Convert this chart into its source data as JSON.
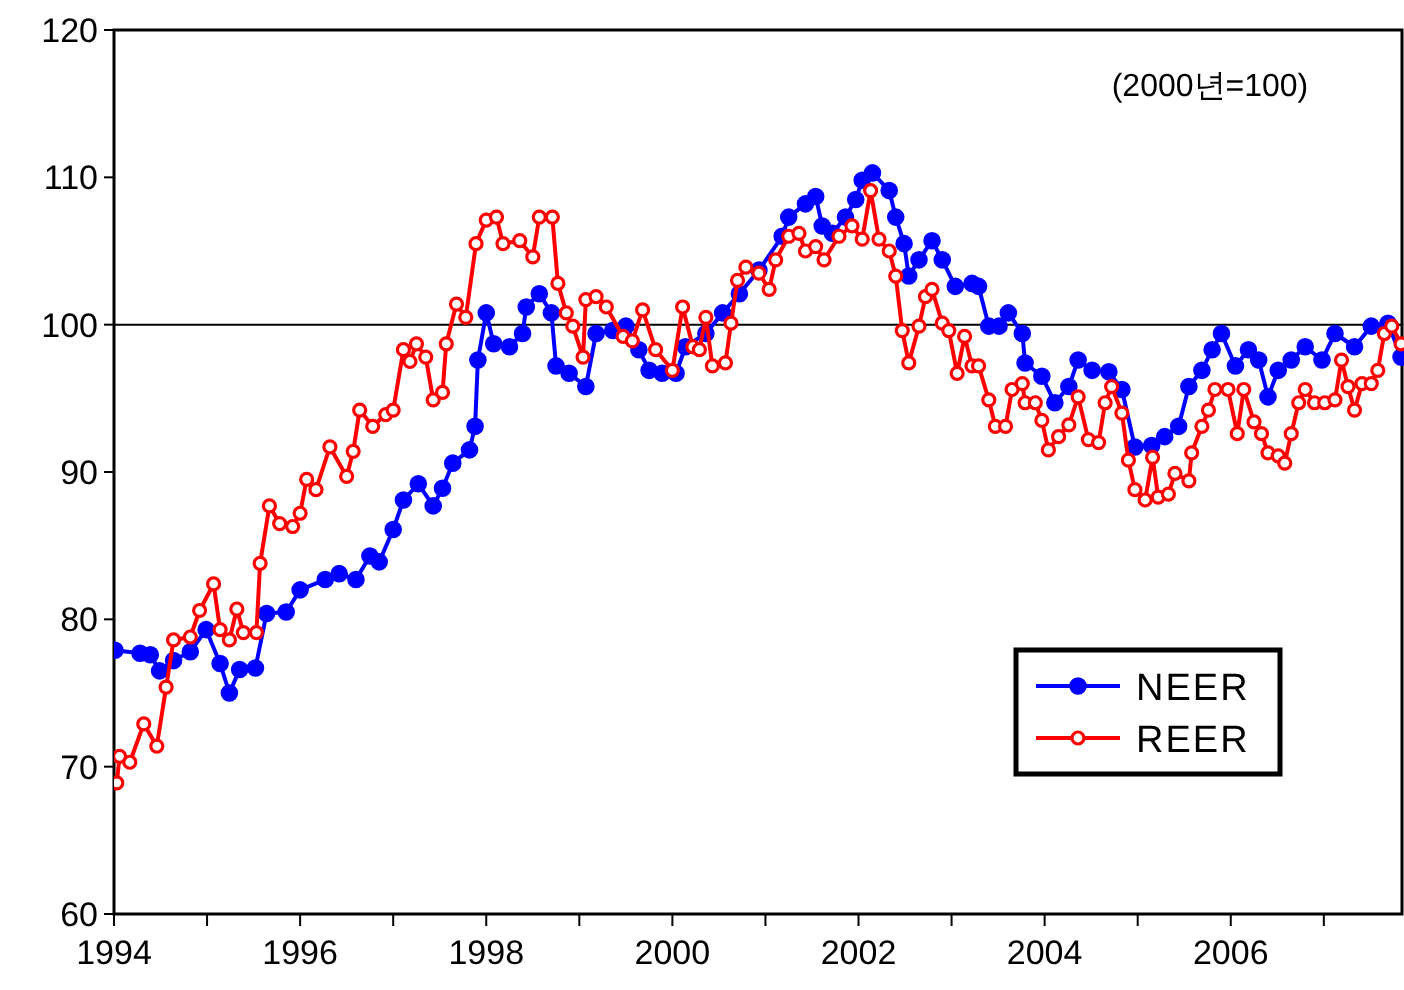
{
  "chart_data": {
    "type": "line",
    "annotations": [
      "(2000년=100)"
    ],
    "xlim": [
      1994,
      2007.84
    ],
    "xticks": [
      1994,
      {
        "value": 1995,
        "label": null
      },
      1996,
      {
        "value": 1997,
        "label": null
      },
      1998,
      {
        "value": 1999,
        "label": null
      },
      2000,
      {
        "value": 2001,
        "label": null
      },
      2002,
      {
        "value": 2003,
        "label": null
      },
      2004,
      {
        "value": 2005,
        "label": null
      },
      2006,
      {
        "value": 2007,
        "label": null
      }
    ],
    "ylim": [
      60,
      120
    ],
    "yticks": [
      60,
      70,
      80,
      90,
      100,
      110,
      120
    ],
    "grid": false,
    "legend": "bottom right",
    "marker": "circle",
    "line_style": "solid",
    "ref_lines": [
      {
        "axis": "y",
        "value": 100,
        "color": "#000000"
      }
    ],
    "series": [
      {
        "name": "NEER",
        "color": "#0000ff",
        "x": [
          1994.01,
          1994.28,
          1994.39,
          1994.49,
          1994.64,
          1994.82,
          1994.99,
          1995.14,
          1995.24,
          1995.35,
          1995.52,
          1995.64,
          1995.85,
          1996.0,
          1996.27,
          1996.42,
          1996.6,
          1996.75,
          1996.85,
          1997.0,
          1997.11,
          1997.27,
          1997.43,
          1997.53,
          1997.64,
          1997.82,
          1997.88,
          1997.91,
          1998.0,
          1998.08,
          1998.25,
          1998.39,
          1998.43,
          1998.57,
          1998.7,
          1998.75,
          1998.89,
          1999.07,
          1999.18,
          1999.36,
          1999.5,
          1999.64,
          1999.75,
          1999.89,
          2000.04,
          2000.14,
          2000.36,
          2000.54,
          2000.72,
          2000.93,
          2001.18,
          2001.25,
          2001.43,
          2001.54,
          2001.61,
          2001.72,
          2001.86,
          2001.97,
          2002.04,
          2002.15,
          2002.33,
          2002.4,
          2002.49,
          2002.54,
          2002.65,
          2002.79,
          2002.9,
          2003.04,
          2003.22,
          2003.29,
          2003.4,
          2003.51,
          2003.61,
          2003.76,
          2003.79,
          2003.97,
          2004.11,
          2004.26,
          2004.36,
          2004.51,
          2004.69,
          2004.83,
          2004.97,
          2005.15,
          2005.29,
          2005.44,
          2005.55,
          2005.69,
          2005.8,
          2005.9,
          2006.05,
          2006.19,
          2006.3,
          2006.4,
          2006.51,
          2006.65,
          2006.8,
          2006.98,
          2007.12,
          2007.33,
          2007.51,
          2007.69,
          2007.83
        ],
        "values": [
          77.9,
          77.7,
          77.6,
          76.5,
          77.2,
          77.8,
          79.3,
          77.0,
          75.0,
          76.6,
          76.7,
          80.4,
          80.5,
          82.0,
          82.7,
          83.1,
          82.7,
          84.3,
          83.9,
          86.1,
          88.1,
          89.2,
          87.7,
          88.9,
          90.6,
          91.5,
          93.1,
          97.6,
          100.8,
          98.7,
          98.5,
          99.4,
          101.2,
          102.1,
          100.8,
          97.2,
          96.7,
          95.8,
          99.4,
          99.6,
          99.9,
          98.3,
          96.9,
          96.7,
          96.7,
          98.5,
          99.4,
          100.8,
          102.1,
          103.7,
          106.0,
          107.3,
          108.2,
          108.7,
          106.7,
          106.2,
          107.3,
          108.5,
          109.8,
          110.3,
          109.1,
          107.3,
          105.5,
          103.3,
          104.4,
          105.7,
          104.4,
          102.6,
          102.8,
          102.6,
          99.9,
          99.9,
          100.8,
          99.4,
          97.4,
          96.5,
          94.7,
          95.8,
          97.6,
          96.9,
          96.8,
          95.6,
          91.7,
          91.8,
          92.4,
          93.1,
          95.8,
          96.9,
          98.3,
          99.4,
          97.2,
          98.3,
          97.6,
          95.1,
          96.9,
          97.6,
          98.5,
          97.6,
          99.4,
          98.5,
          99.9,
          100.1,
          97.8
        ]
      },
      {
        "name": "REER",
        "color": "#ff0000",
        "x": [
          1994.03,
          1994.06,
          1994.17,
          1994.32,
          1994.46,
          1994.56,
          1994.64,
          1994.82,
          1994.92,
          1995.07,
          1995.14,
          1995.24,
          1995.32,
          1995.39,
          1995.53,
          1995.57,
          1995.67,
          1995.78,
          1995.92,
          1996.0,
          1996.07,
          1996.17,
          1996.32,
          1996.5,
          1996.57,
          1996.64,
          1996.78,
          1996.92,
          1997.0,
          1997.11,
          1997.18,
          1997.25,
          1997.35,
          1997.43,
          1997.53,
          1997.57,
          1997.68,
          1997.78,
          1997.89,
          1998.0,
          1998.11,
          1998.18,
          1998.36,
          1998.5,
          1998.57,
          1998.71,
          1998.77,
          1998.86,
          1998.93,
          1999.04,
          1999.07,
          1999.18,
          1999.29,
          1999.47,
          1999.57,
          1999.68,
          1999.82,
          2000.0,
          2000.11,
          2000.22,
          2000.29,
          2000.36,
          2000.43,
          2000.57,
          2000.63,
          2000.7,
          2000.79,
          2000.93,
          2001.04,
          2001.11,
          2001.25,
          2001.36,
          2001.43,
          2001.54,
          2001.63,
          2001.79,
          2001.93,
          2002.04,
          2002.13,
          2002.22,
          2002.33,
          2002.4,
          2002.47,
          2002.54,
          2002.65,
          2002.72,
          2002.79,
          2002.9,
          2002.97,
          2003.06,
          2003.14,
          2003.22,
          2003.29,
          2003.4,
          2003.47,
          2003.58,
          2003.65,
          2003.76,
          2003.79,
          2003.9,
          2003.97,
          2004.04,
          2004.15,
          2004.26,
          2004.36,
          2004.47,
          2004.58,
          2004.65,
          2004.72,
          2004.83,
          2004.9,
          2004.97,
          2005.08,
          2005.16,
          2005.22,
          2005.33,
          2005.4,
          2005.55,
          2005.58,
          2005.69,
          2005.76,
          2005.83,
          2005.97,
          2006.07,
          2006.14,
          2006.25,
          2006.33,
          2006.4,
          2006.51,
          2006.58,
          2006.65,
          2006.73,
          2006.8,
          2006.9,
          2007.01,
          2007.12,
          2007.19,
          2007.26,
          2007.33,
          2007.41,
          2007.51,
          2007.58,
          2007.65,
          2007.73,
          2007.83
        ],
        "values": [
          68.9,
          70.7,
          70.3,
          72.9,
          71.4,
          75.4,
          78.6,
          78.8,
          80.6,
          82.4,
          79.3,
          78.6,
          80.7,
          79.1,
          79.1,
          83.8,
          87.7,
          86.5,
          86.3,
          87.2,
          89.5,
          88.8,
          91.7,
          89.7,
          91.4,
          94.2,
          93.1,
          93.9,
          94.2,
          98.3,
          97.5,
          98.7,
          97.8,
          94.9,
          95.4,
          98.7,
          101.4,
          100.5,
          105.5,
          107.1,
          107.3,
          105.5,
          105.7,
          104.6,
          107.3,
          107.3,
          102.8,
          100.8,
          99.9,
          97.8,
          101.7,
          101.9,
          101.2,
          99.2,
          98.9,
          101.0,
          98.3,
          96.9,
          101.2,
          98.5,
          98.3,
          100.5,
          97.2,
          97.4,
          100.1,
          103.0,
          103.9,
          103.5,
          102.4,
          104.4,
          106.0,
          106.2,
          105.0,
          105.3,
          104.4,
          106.0,
          106.7,
          105.8,
          109.1,
          105.8,
          105.0,
          103.3,
          99.6,
          97.4,
          99.9,
          101.9,
          102.4,
          100.1,
          99.6,
          96.7,
          99.2,
          97.2,
          97.2,
          94.9,
          93.1,
          93.1,
          95.6,
          96.0,
          94.7,
          94.7,
          93.5,
          91.5,
          92.4,
          93.2,
          95.1,
          92.2,
          92.0,
          94.7,
          95.8,
          94.0,
          90.8,
          88.8,
          88.1,
          91.0,
          88.3,
          88.5,
          89.9,
          89.4,
          91.3,
          93.1,
          94.2,
          95.6,
          95.6,
          92.6,
          95.6,
          93.4,
          92.6,
          91.3,
          91.1,
          90.6,
          92.6,
          94.7,
          95.6,
          94.7,
          94.7,
          94.9,
          97.6,
          95.8,
          94.2,
          96.0,
          96.0,
          96.9,
          99.4,
          99.9,
          98.7
        ]
      }
    ]
  }
}
